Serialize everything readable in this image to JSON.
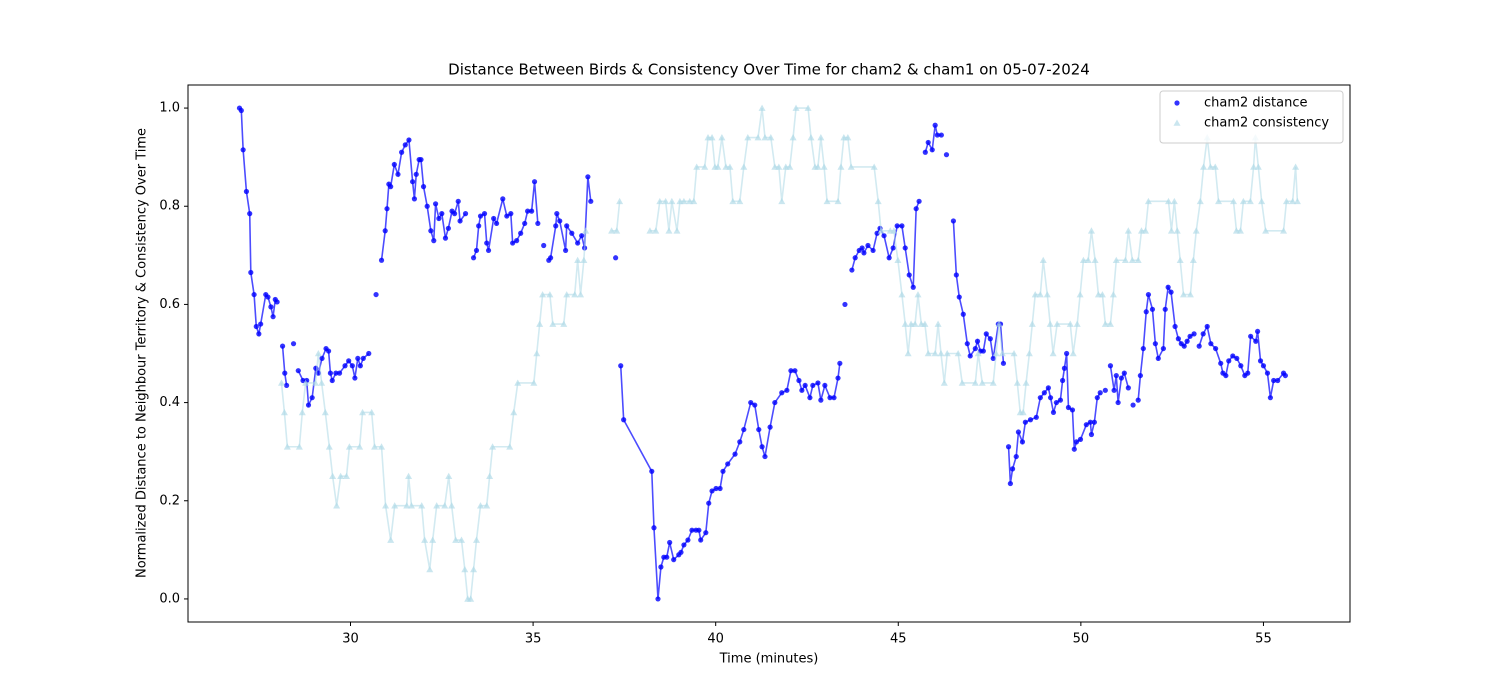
{
  "chart_data": {
    "type": "line",
    "title": "Distance Between Birds & Consistency Over Time for cham2 & cham1 on 05-07-2024",
    "x_label": "Time (minutes)",
    "y_label": "Normalized Distance to Neighbour Territory & Consistency Over Time",
    "xlim": [
      25.55,
      57.37
    ],
    "ylim": [
      -0.047,
      1.047
    ],
    "xticks": [
      30,
      35,
      40,
      45,
      50,
      55
    ],
    "yticks": [
      {
        "value": 0,
        "label": "0.0"
      },
      0.2,
      0.4,
      0.6,
      0.8,
      {
        "value": 1,
        "label": "1.0"
      }
    ],
    "legend": "upper right",
    "series": [
      {
        "name": "cham2 distance",
        "color": "#0000ff",
        "marker": "circle",
        "x": [
          26.96,
          27.01,
          27.06,
          27.15,
          27.24,
          27.27,
          27.36,
          27.42,
          27.49,
          27.54,
          27.68,
          27.74,
          27.82,
          27.88,
          27.94,
          27.99,
          null,
          28.14,
          28.2,
          28.25,
          null,
          28.44,
          null,
          28.57,
          28.7,
          28.8,
          28.85,
          28.95,
          29.05,
          29.12,
          29.22,
          29.33,
          29.4,
          29.45,
          29.5,
          29.6,
          29.7,
          29.85,
          29.95,
          30.05,
          30.12,
          30.2,
          30.27,
          30.35,
          30.5,
          null,
          30.7,
          null,
          30.85,
          30.95,
          31.0,
          31.05,
          31.1,
          31.2,
          31.3,
          31.4,
          31.5,
          31.6,
          31.7,
          31.75,
          31.8,
          31.88,
          31.93,
          32.0,
          32.1,
          32.2,
          32.28,
          32.33,
          32.42,
          32.5,
          32.6,
          32.68,
          32.78,
          32.85,
          32.95,
          33.0,
          33.15,
          null,
          33.37,
          33.45,
          33.51,
          33.56,
          33.67,
          33.73,
          33.78,
          33.92,
          34.0,
          34.17,
          34.28,
          34.39,
          34.44,
          34.55,
          34.66,
          34.77,
          34.85,
          34.96,
          35.04,
          35.13,
          null,
          35.29,
          null,
          35.43,
          35.48,
          35.62,
          35.65,
          35.73,
          35.89,
          35.92,
          36.06,
          36.22,
          36.33,
          36.41,
          36.5,
          36.58,
          null,
          37.26,
          null,
          37.4,
          37.48,
          38.25,
          38.31,
          38.42,
          38.5,
          38.58,
          38.66,
          38.74,
          38.85,
          38.99,
          39.05,
          39.13,
          39.24,
          39.35,
          39.46,
          39.54,
          39.59,
          39.73,
          39.81,
          39.9,
          40.01,
          40.12,
          40.2,
          40.33,
          40.53,
          40.66,
          40.77,
          40.96,
          41.07,
          41.18,
          41.27,
          41.35,
          41.49,
          41.62,
          41.81,
          41.95,
          42.06,
          42.17,
          42.28,
          42.36,
          42.45,
          42.58,
          42.66,
          42.8,
          42.88,
          42.99,
          43.13,
          43.24,
          43.35,
          43.4,
          null,
          43.54,
          null,
          43.73,
          43.82,
          43.93,
          44.01,
          44.06,
          44.17,
          44.31,
          44.42,
          44.5,
          44.61,
          44.75,
          44.86,
          44.97,
          45.1,
          45.19,
          45.3,
          45.41,
          45.49,
          45.57,
          null,
          45.74,
          45.82,
          45.93,
          46.01,
          46.07,
          46.18,
          null,
          46.32,
          null,
          46.51,
          46.59,
          46.67,
          46.78,
          46.89,
          46.97,
          47.11,
          47.17,
          47.25,
          47.33,
          47.41,
          47.52,
          47.6,
          47.74,
          47.8,
          47.88,
          null,
          48.02,
          48.07,
          48.13,
          48.23,
          48.29,
          48.4,
          48.48,
          48.62,
          48.78,
          48.89,
          49.0,
          49.11,
          49.17,
          49.25,
          49.33,
          49.44,
          49.5,
          49.55,
          49.61,
          49.66,
          49.77,
          49.82,
          49.88,
          49.99,
          50.15,
          50.26,
          50.29,
          50.37,
          50.45,
          50.53,
          null,
          50.67,
          null,
          50.81,
          50.91,
          50.97,
          51.02,
          51.11,
          51.19,
          51.3,
          null,
          51.43,
          null,
          51.57,
          51.63,
          51.71,
          51.79,
          51.85,
          51.96,
          52.04,
          52.12,
          52.26,
          52.31,
          52.39,
          52.47,
          52.58,
          52.67,
          52.75,
          52.83,
          52.91,
          52.99,
          53.1,
          null,
          53.24,
          53.35,
          53.46,
          53.56,
          53.69,
          53.83,
          53.89,
          53.97,
          54.05,
          54.16,
          54.27,
          54.38,
          54.49,
          54.57,
          54.65,
          54.79,
          54.84,
          54.92,
          55.0,
          55.11,
          55.19,
          55.28,
          55.39,
          55.55,
          55.6
        ],
        "values": [
          1.0,
          0.995,
          0.915,
          0.83,
          0.785,
          0.665,
          0.62,
          0.555,
          0.54,
          0.56,
          0.62,
          0.615,
          0.595,
          0.575,
          0.61,
          0.605,
          null,
          0.515,
          0.46,
          0.435,
          null,
          0.52,
          null,
          0.465,
          0.445,
          0.445,
          0.395,
          0.41,
          0.47,
          0.46,
          0.49,
          0.51,
          0.505,
          0.46,
          0.445,
          0.46,
          0.46,
          0.475,
          0.485,
          0.475,
          0.45,
          0.49,
          0.475,
          0.49,
          0.5,
          null,
          0.62,
          null,
          0.69,
          0.75,
          0.795,
          0.845,
          0.84,
          0.885,
          0.865,
          0.91,
          0.925,
          0.935,
          0.85,
          0.815,
          0.865,
          0.895,
          0.895,
          0.84,
          0.8,
          0.75,
          0.73,
          0.805,
          0.775,
          0.785,
          0.735,
          0.755,
          0.79,
          0.785,
          0.81,
          0.77,
          0.785,
          null,
          0.695,
          0.71,
          0.76,
          0.78,
          0.785,
          0.725,
          0.71,
          0.775,
          0.765,
          0.815,
          0.78,
          0.785,
          0.725,
          0.73,
          0.745,
          0.765,
          0.79,
          0.79,
          0.85,
          0.765,
          null,
          0.72,
          null,
          0.69,
          0.695,
          0.76,
          0.785,
          0.77,
          0.71,
          0.76,
          0.745,
          0.725,
          0.74,
          0.715,
          0.86,
          0.81,
          null,
          0.695,
          null,
          0.475,
          0.365,
          0.26,
          0.145,
          0.0,
          0.065,
          0.085,
          0.085,
          0.115,
          0.08,
          0.09,
          0.095,
          0.11,
          0.12,
          0.14,
          0.14,
          0.14,
          0.12,
          0.135,
          0.195,
          0.22,
          0.225,
          0.225,
          0.26,
          0.275,
          0.295,
          0.32,
          0.345,
          0.4,
          0.395,
          0.345,
          0.31,
          0.29,
          0.35,
          0.4,
          0.42,
          0.425,
          0.465,
          0.465,
          0.445,
          0.425,
          0.435,
          0.41,
          0.435,
          0.44,
          0.405,
          0.435,
          0.41,
          0.41,
          0.45,
          0.48,
          null,
          0.6,
          null,
          0.67,
          0.695,
          0.71,
          0.715,
          0.705,
          0.72,
          0.71,
          0.745,
          0.755,
          0.74,
          0.695,
          0.715,
          0.76,
          0.76,
          0.715,
          0.66,
          0.635,
          0.795,
          0.81,
          null,
          0.91,
          0.93,
          0.915,
          0.965,
          0.945,
          0.945,
          null,
          0.905,
          null,
          0.77,
          0.66,
          0.615,
          0.58,
          0.52,
          0.495,
          0.51,
          0.525,
          0.505,
          0.505,
          0.54,
          0.53,
          0.49,
          0.56,
          0.56,
          0.48,
          null,
          0.31,
          0.235,
          0.265,
          0.29,
          0.34,
          0.32,
          0.36,
          0.365,
          0.37,
          0.41,
          0.42,
          0.43,
          0.41,
          0.38,
          0.4,
          0.405,
          0.445,
          0.47,
          0.5,
          0.39,
          0.385,
          0.305,
          0.32,
          0.325,
          0.355,
          0.36,
          0.335,
          0.36,
          0.41,
          0.42,
          null,
          0.425,
          null,
          0.475,
          0.425,
          0.455,
          0.4,
          0.45,
          0.46,
          0.43,
          null,
          0.395,
          null,
          0.405,
          0.455,
          0.51,
          0.585,
          0.62,
          0.59,
          0.52,
          0.49,
          0.51,
          0.59,
          0.635,
          0.625,
          0.555,
          0.53,
          0.52,
          0.515,
          0.525,
          0.535,
          0.54,
          null,
          0.515,
          0.54,
          0.555,
          0.52,
          0.51,
          0.48,
          0.46,
          0.455,
          0.485,
          0.495,
          0.49,
          0.475,
          0.455,
          0.46,
          0.535,
          0.525,
          0.545,
          0.485,
          0.475,
          0.46,
          0.41,
          0.445,
          0.445,
          0.46,
          0.455
        ]
      },
      {
        "name": "cham2 consistency",
        "color": "#add8e6",
        "marker": "triangle",
        "x": [
          28.11,
          28.19,
          28.27,
          28.6,
          28.68,
          28.77,
          29.04,
          29.12,
          29.21,
          29.31,
          29.42,
          29.51,
          29.62,
          29.73,
          29.89,
          29.97,
          30.25,
          30.33,
          30.58,
          30.66,
          30.85,
          30.96,
          31.1,
          31.21,
          31.54,
          31.59,
          31.67,
          31.95,
          32.03,
          32.17,
          32.25,
          32.36,
          32.58,
          32.69,
          32.77,
          32.88,
          33.04,
          33.13,
          33.21,
          33.29,
          33.37,
          33.45,
          33.56,
          33.73,
          33.81,
          33.89,
          34.36,
          34.47,
          34.58,
          35.02,
          35.1,
          35.18,
          35.26,
          35.46,
          35.54,
          35.84,
          35.92,
          36.14,
          36.22,
          36.3,
          36.39,
          36.44,
          null,
          37.15,
          37.29,
          37.37,
          null,
          38.2,
          38.36,
          38.47,
          38.63,
          38.72,
          38.8,
          38.94,
          39.02,
          39.13,
          39.29,
          39.4,
          39.48,
          39.7,
          39.79,
          39.9,
          39.98,
          40.06,
          40.17,
          40.28,
          40.39,
          40.47,
          40.66,
          40.77,
          40.88,
          41.16,
          41.27,
          41.35,
          41.51,
          41.62,
          41.73,
          41.81,
          41.92,
          42.03,
          42.12,
          42.2,
          42.53,
          42.61,
          42.72,
          42.8,
          42.88,
          42.97,
          43.05,
          43.35,
          43.43,
          43.51,
          43.62,
          43.71,
          44.34,
          44.45,
          44.53,
          44.78,
          44.88,
          44.99,
          45.1,
          45.19,
          45.27,
          45.35,
          45.46,
          45.54,
          45.63,
          45.73,
          45.82,
          46.01,
          46.09,
          46.17,
          46.26,
          46.34,
          46.64,
          46.75,
          47.11,
          47.19,
          47.3,
          47.6,
          47.68,
          47.76,
          47.85,
          48.17,
          48.26,
          48.34,
          48.42,
          48.5,
          48.59,
          48.67,
          48.75,
          48.89,
          48.97,
          49.08,
          49.16,
          49.24,
          49.35,
          49.71,
          49.79,
          49.9,
          49.98,
          50.07,
          50.2,
          50.29,
          50.39,
          50.48,
          50.59,
          50.67,
          50.81,
          50.89,
          50.97,
          51.22,
          51.3,
          51.41,
          51.57,
          51.66,
          51.77,
          51.85,
          52.4,
          52.48,
          52.56,
          52.64,
          52.72,
          52.81,
          53.0,
          53.08,
          53.16,
          53.27,
          53.36,
          53.46,
          53.55,
          53.68,
          53.77,
          54.18,
          54.26,
          54.37,
          54.45,
          54.64,
          54.73,
          54.78,
          54.86,
          54.95,
          55.06,
          55.55,
          55.63,
          55.8,
          55.88,
          55.93
        ],
        "values": [
          0.44,
          0.38,
          0.31,
          0.31,
          0.38,
          0.44,
          0.44,
          0.5,
          0.44,
          0.38,
          0.31,
          0.25,
          0.19,
          0.25,
          0.25,
          0.31,
          0.31,
          0.38,
          0.38,
          0.31,
          0.31,
          0.19,
          0.12,
          0.19,
          0.19,
          0.25,
          0.19,
          0.19,
          0.12,
          0.06,
          0.12,
          0.19,
          0.19,
          0.25,
          0.19,
          0.12,
          0.12,
          0.06,
          0.0,
          0.0,
          0.06,
          0.12,
          0.19,
          0.19,
          0.25,
          0.31,
          0.31,
          0.38,
          0.44,
          0.44,
          0.5,
          0.56,
          0.62,
          0.62,
          0.56,
          0.56,
          0.62,
          0.62,
          0.69,
          0.62,
          0.69,
          0.75,
          null,
          0.75,
          0.75,
          0.81,
          null,
          0.75,
          0.75,
          0.81,
          0.81,
          0.75,
          0.81,
          0.75,
          0.81,
          0.81,
          0.81,
          0.81,
          0.88,
          0.88,
          0.94,
          0.94,
          0.88,
          0.88,
          0.94,
          0.88,
          0.88,
          0.81,
          0.81,
          0.88,
          0.94,
          0.94,
          1.0,
          0.94,
          0.94,
          0.88,
          0.88,
          0.81,
          0.88,
          0.88,
          0.94,
          1.0,
          1.0,
          0.94,
          0.88,
          0.88,
          0.94,
          0.88,
          0.81,
          0.81,
          0.88,
          0.94,
          0.94,
          0.88,
          0.88,
          0.81,
          0.75,
          0.75,
          0.75,
          0.69,
          0.62,
          0.56,
          0.5,
          0.56,
          0.56,
          0.62,
          0.56,
          0.56,
          0.5,
          0.5,
          0.56,
          0.5,
          0.44,
          0.5,
          0.5,
          0.44,
          0.44,
          0.5,
          0.44,
          0.44,
          0.5,
          0.56,
          0.5,
          0.5,
          0.44,
          0.38,
          0.38,
          0.44,
          0.5,
          0.56,
          0.62,
          0.62,
          0.69,
          0.62,
          0.56,
          0.5,
          0.56,
          0.56,
          0.5,
          0.56,
          0.62,
          0.69,
          0.69,
          0.75,
          0.69,
          0.62,
          0.62,
          0.56,
          0.56,
          0.62,
          0.69,
          0.69,
          0.75,
          0.69,
          0.69,
          0.75,
          0.75,
          0.81,
          0.81,
          0.75,
          0.81,
          0.75,
          0.69,
          0.62,
          0.62,
          0.69,
          0.75,
          0.81,
          0.88,
          0.94,
          0.88,
          0.88,
          0.81,
          0.81,
          0.75,
          0.75,
          0.81,
          0.81,
          0.88,
          0.94,
          0.88,
          0.81,
          0.75,
          0.75,
          0.81,
          0.81,
          0.88,
          0.81
        ]
      }
    ]
  }
}
